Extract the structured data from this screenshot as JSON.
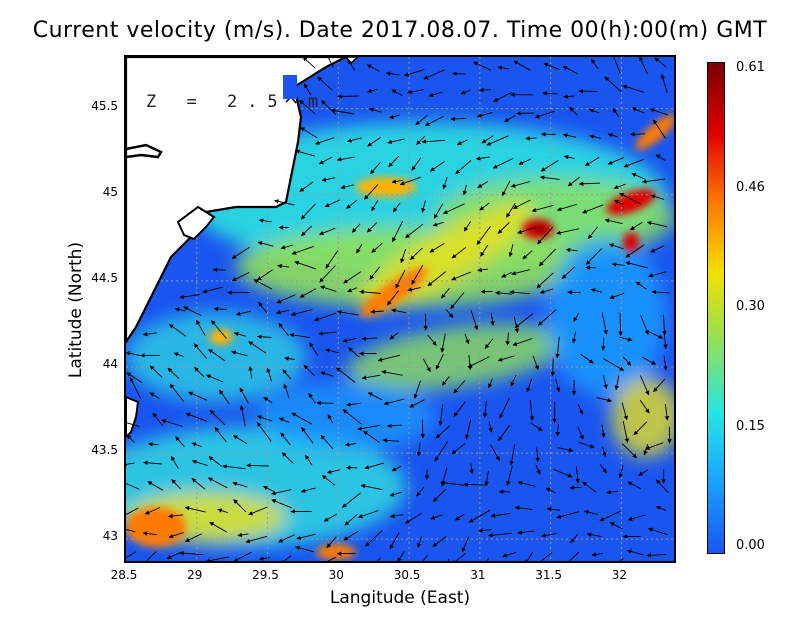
{
  "title": "Current velocity (m/s). Date 2017.08.07. Time 00(h):00(m) GMT",
  "depth_label": "Z = 2.5 m",
  "axes": {
    "x_label": "Langitude (East)",
    "y_label": "Latitude (North)",
    "x_range": [
      28.5,
      32.4
    ],
    "y_range": [
      42.85,
      45.8
    ],
    "x_ticks": [
      "28.5",
      "29",
      "29.5",
      "30",
      "30.5",
      "31",
      "31.5",
      "32"
    ],
    "y_ticks": [
      "45.5",
      "45",
      "44.5",
      "44",
      "43.5",
      "43"
    ]
  },
  "colorbar": {
    "ticks": [
      "0.61",
      "0.46",
      "0.30",
      "0.15",
      "0.00"
    ],
    "colors": [
      "#7a0000",
      "#e00000",
      "#ff7a00",
      "#f2e000",
      "#8fe05a",
      "#24e6e6",
      "#1aa0ff",
      "#1a55f0"
    ]
  },
  "colors": {
    "land": "#ffffff",
    "coast": "#000000",
    "grid": "#9a9a9a",
    "arrow": "#000000"
  }
}
